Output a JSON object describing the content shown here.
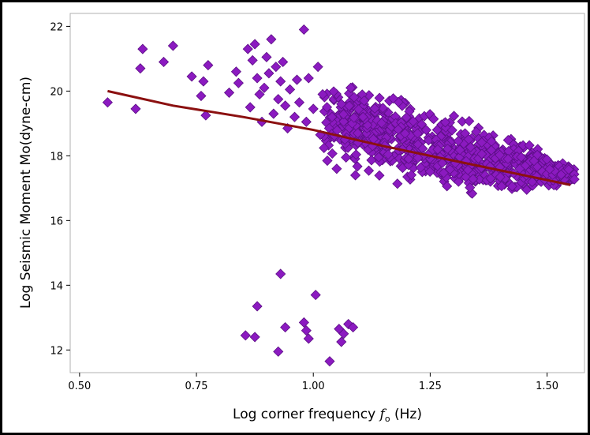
{
  "chart_data": {
    "type": "scatter",
    "title": "",
    "xlabel_main": "Log corner frequency ",
    "xlabel_symbol": "f",
    "xlabel_sub": "o",
    "xlabel_unit": " (Hz)",
    "ylabel": "Log Seismic Moment Mo(dyne-cm)",
    "xlim": [
      0.48,
      1.58
    ],
    "ylim": [
      11.3,
      22.4
    ],
    "xticks": [
      "0.50",
      "0.75",
      "1.00",
      "1.25",
      "1.50"
    ],
    "xtick_values": [
      0.5,
      0.75,
      1.0,
      1.25,
      1.5
    ],
    "yticks": [
      "12",
      "14",
      "16",
      "18",
      "20",
      "22"
    ],
    "ytick_values": [
      12,
      14,
      16,
      18,
      20,
      22
    ],
    "grid": false,
    "colors": {
      "points": "#8b1ac0",
      "points_edge": "#5c0f85",
      "fit_line": "#8b1010"
    },
    "series": [
      {
        "kind": "scatter",
        "marker": "diamond",
        "scattered_points": [
          [
            0.56,
            19.65
          ],
          [
            0.62,
            19.45
          ],
          [
            0.63,
            20.7
          ],
          [
            0.635,
            21.3
          ],
          [
            0.68,
            20.9
          ],
          [
            0.7,
            21.4
          ],
          [
            0.74,
            20.45
          ],
          [
            0.76,
            19.85
          ],
          [
            0.765,
            20.3
          ],
          [
            0.77,
            19.25
          ],
          [
            0.775,
            20.8
          ],
          [
            0.82,
            19.95
          ],
          [
            0.835,
            20.6
          ],
          [
            0.84,
            20.25
          ],
          [
            0.86,
            21.3
          ],
          [
            0.865,
            19.5
          ],
          [
            0.87,
            20.95
          ],
          [
            0.875,
            21.45
          ],
          [
            0.88,
            20.4
          ],
          [
            0.885,
            19.9
          ],
          [
            0.89,
            19.05
          ],
          [
            0.895,
            20.1
          ],
          [
            0.9,
            21.05
          ],
          [
            0.905,
            20.55
          ],
          [
            0.91,
            21.6
          ],
          [
            0.915,
            19.3
          ],
          [
            0.92,
            20.75
          ],
          [
            0.925,
            19.75
          ],
          [
            0.93,
            20.3
          ],
          [
            0.935,
            20.9
          ],
          [
            0.94,
            19.55
          ],
          [
            0.945,
            18.85
          ],
          [
            0.95,
            20.05
          ],
          [
            0.96,
            19.2
          ],
          [
            0.965,
            20.35
          ],
          [
            0.97,
            19.65
          ],
          [
            0.98,
            21.9
          ],
          [
            0.985,
            19.05
          ],
          [
            0.99,
            20.4
          ],
          [
            1.0,
            19.45
          ],
          [
            1.01,
            20.75
          ],
          [
            1.015,
            18.65
          ],
          [
            1.02,
            19.9
          ],
          [
            1.03,
            17.85
          ],
          [
            1.04,
            19.2
          ],
          [
            1.05,
            17.6
          ],
          [
            1.06,
            19.6
          ],
          [
            1.07,
            17.95
          ],
          [
            1.08,
            20.1
          ],
          [
            1.09,
            17.4
          ],
          [
            1.095,
            18.7
          ],
          [
            0.855,
            12.45
          ],
          [
            0.875,
            12.4
          ],
          [
            0.88,
            13.35
          ],
          [
            0.925,
            11.95
          ],
          [
            0.93,
            14.35
          ],
          [
            0.94,
            12.7
          ],
          [
            0.98,
            12.85
          ],
          [
            0.985,
            12.6
          ],
          [
            0.99,
            12.35
          ],
          [
            1.005,
            13.7
          ],
          [
            1.035,
            11.65
          ],
          [
            1.055,
            12.65
          ],
          [
            1.06,
            12.25
          ],
          [
            1.065,
            12.5
          ],
          [
            1.075,
            12.8
          ],
          [
            1.085,
            12.7
          ]
        ],
        "dense_cluster": {
          "x_range": [
            1.02,
            1.56
          ],
          "y_center_at_x": [
            [
              1.05,
              19.1
            ],
            [
              1.15,
              18.6
            ],
            [
              1.25,
              18.2
            ],
            [
              1.35,
              17.9
            ],
            [
              1.45,
              17.7
            ],
            [
              1.55,
              17.4
            ]
          ],
          "y_spread": [
            [
              1.05,
              2.4
            ],
            [
              1.15,
              2.8
            ],
            [
              1.25,
              2.4
            ],
            [
              1.35,
              2.0
            ],
            [
              1.45,
              1.5
            ],
            [
              1.55,
              0.6
            ]
          ],
          "count": 900
        }
      },
      {
        "kind": "line",
        "x": [
          0.56,
          0.7,
          0.85,
          1.0,
          1.15,
          1.3,
          1.45,
          1.55
        ],
        "y": [
          20.0,
          19.55,
          19.2,
          18.8,
          18.3,
          17.85,
          17.4,
          17.1
        ]
      }
    ]
  }
}
